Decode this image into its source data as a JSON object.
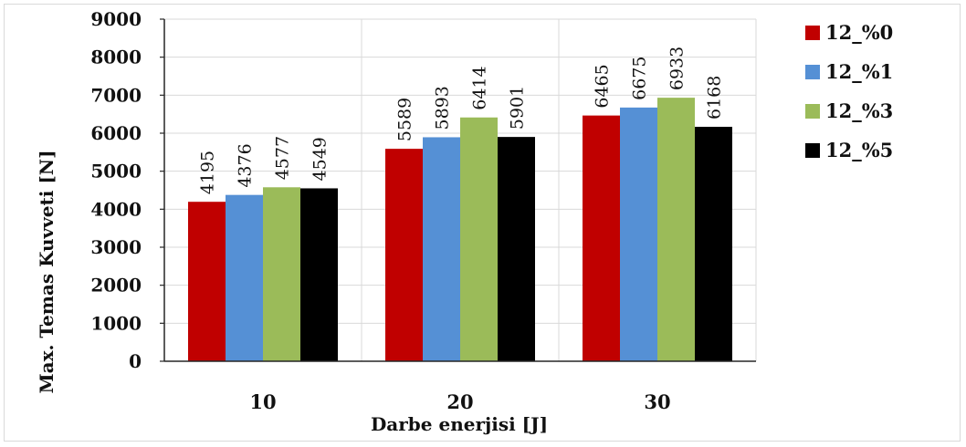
{
  "chart_data": {
    "type": "bar",
    "title": "",
    "xlabel": "Darbe enerjisi [J]",
    "ylabel": "Max. Temas Kuvveti [N]",
    "categories": [
      "10",
      "20",
      "30"
    ],
    "ylim": [
      0,
      9000
    ],
    "yticks": [
      "0",
      "1000",
      "2000",
      "3000",
      "4000",
      "5000",
      "6000",
      "7000",
      "8000",
      "9000"
    ],
    "grid": true,
    "legend_position": "right",
    "series": [
      {
        "name": "12_%0",
        "color": "#c00000",
        "values": [
          4195,
          5589,
          6465
        ]
      },
      {
        "name": "12_%1",
        "color": "#5590d5",
        "values": [
          4376,
          5893,
          6675
        ]
      },
      {
        "name": "12_%3",
        "color": "#9bbb59",
        "values": [
          4577,
          6414,
          6933
        ]
      },
      {
        "name": "12_%5",
        "color": "#000000",
        "values": [
          4549,
          5901,
          6168
        ]
      }
    ]
  }
}
